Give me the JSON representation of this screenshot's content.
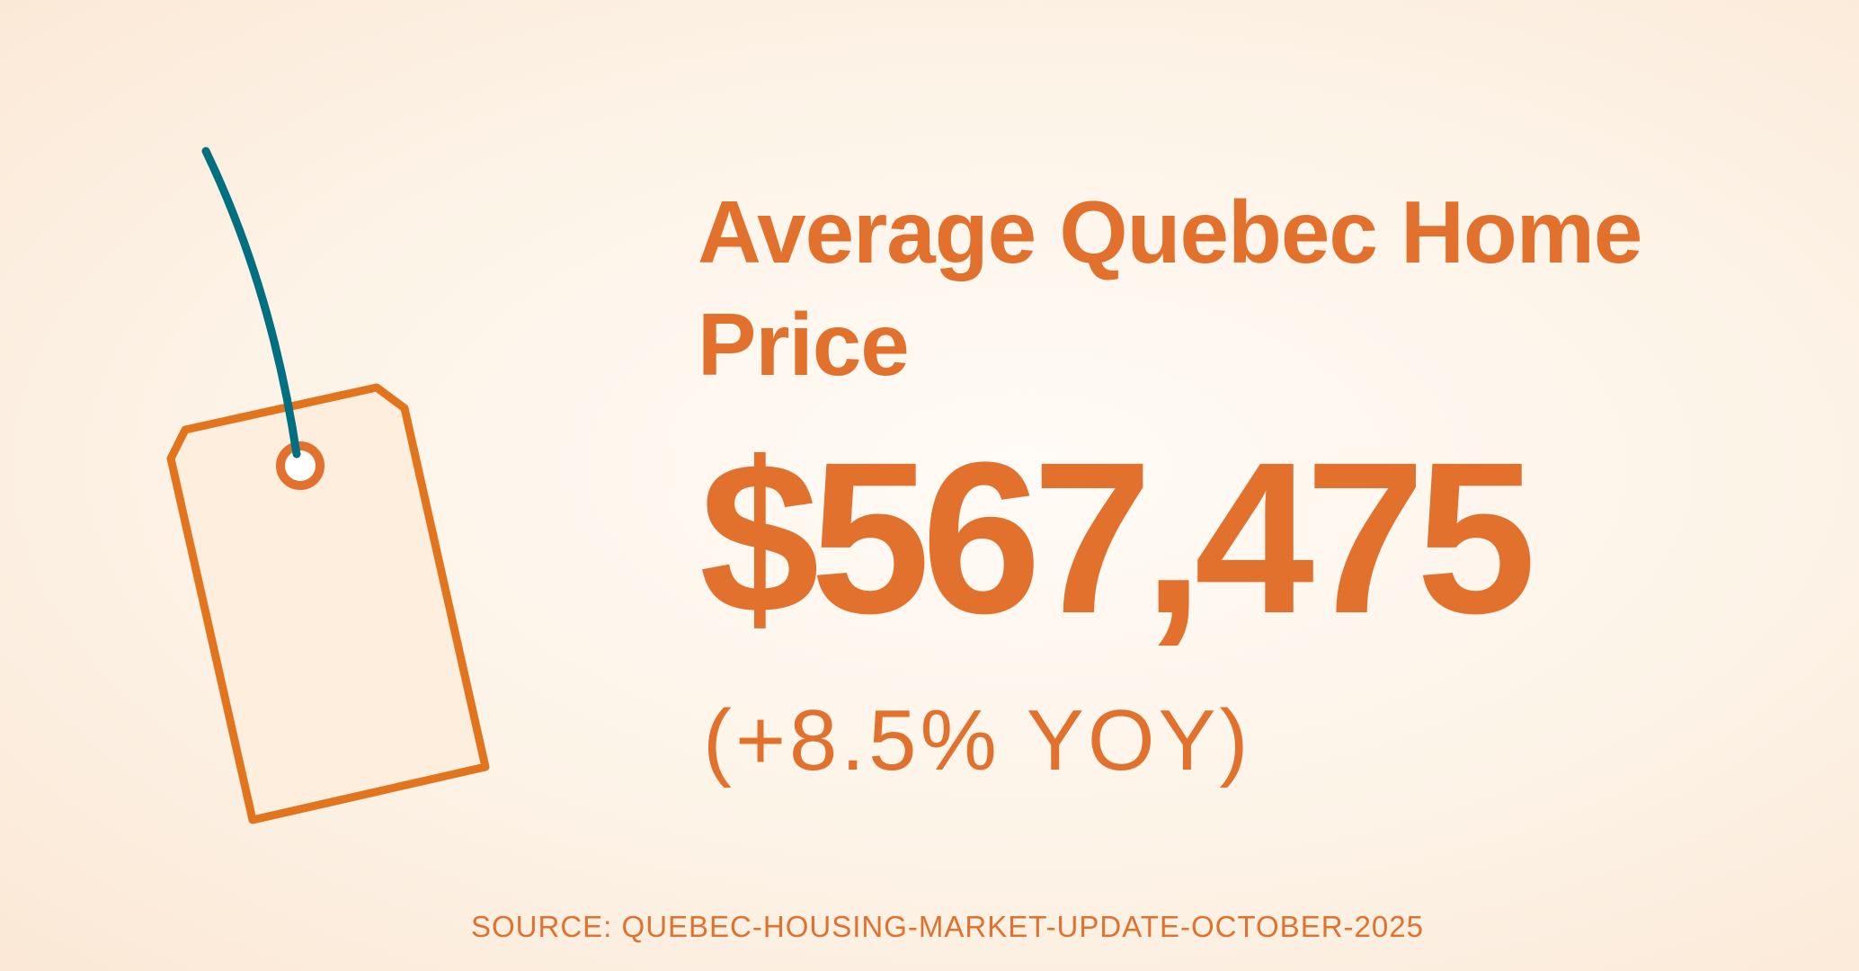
{
  "title": "Average Quebec Home Price",
  "price": "$567,475",
  "change": "(+8.5% YOY)",
  "source": "SOURCE: QUEBEC-HOUSING-MARKET-UPDATE-OCTOBER-2025",
  "illustration": {
    "icon": "price-tag-icon"
  },
  "colors": {
    "accent": "#e2712e",
    "string": "#006f7f",
    "tag_fill": "#fdeedd",
    "background": "#fdf3e7"
  }
}
